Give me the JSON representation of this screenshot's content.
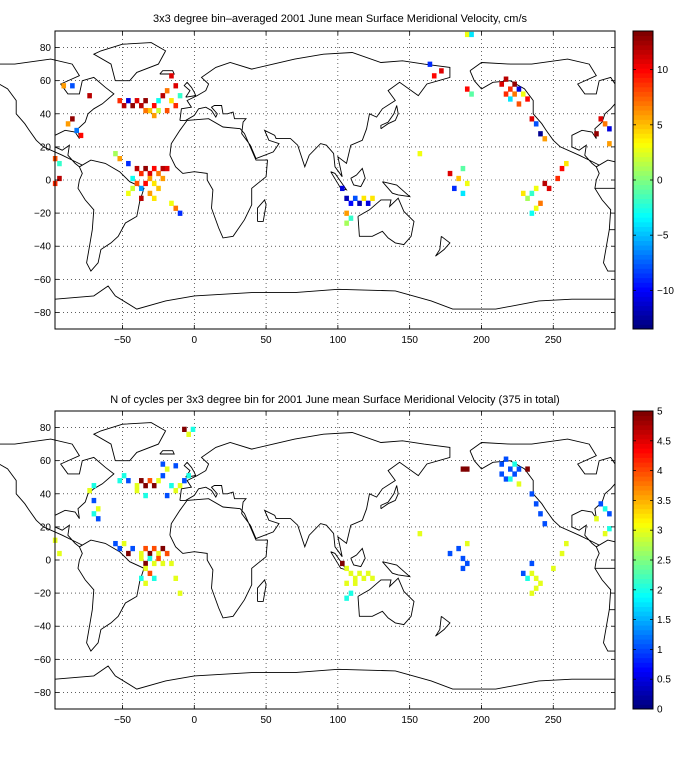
{
  "chart_data": [
    {
      "type": "heatmap",
      "title": "3x3 degree bin–averaged 2001 June mean Surface Meridional Velocity, cm/s",
      "x_ticks": [
        -50,
        0,
        50,
        100,
        150,
        200,
        250
      ],
      "y_ticks": [
        80,
        60,
        40,
        20,
        0,
        -20,
        -40,
        -60,
        -80
      ],
      "xlim": [
        -97,
        293
      ],
      "ylim": [
        -90,
        90
      ],
      "grid": true,
      "colorbar": {
        "range": [
          -13.5,
          13.5
        ],
        "ticks": [
          10,
          5,
          0,
          -5,
          -10
        ],
        "colormap": "jet"
      },
      "cells": [
        [
          190,
          88,
          3
        ],
        [
          193,
          88,
          -4
        ],
        [
          167,
          63,
          10
        ],
        [
          164,
          70,
          -9
        ],
        [
          172,
          66,
          11
        ],
        [
          -91,
          57,
          6
        ],
        [
          -85,
          57,
          -8
        ],
        [
          -73,
          51,
          12
        ],
        [
          -52,
          48,
          9
        ],
        [
          -49,
          45,
          12
        ],
        [
          -46,
          48,
          -11
        ],
        [
          -43,
          45,
          13
        ],
        [
          -40,
          48,
          11
        ],
        [
          -37,
          45,
          12
        ],
        [
          -34,
          48,
          13
        ],
        [
          -31,
          42,
          5
        ],
        [
          -34,
          42,
          7
        ],
        [
          -28,
          45,
          10
        ],
        [
          -25,
          48,
          -3
        ],
        [
          -22,
          51,
          12
        ],
        [
          -19,
          54,
          7
        ],
        [
          -16,
          48,
          4
        ],
        [
          -13,
          45,
          9
        ],
        [
          -25,
          42,
          2
        ],
        [
          -28,
          39,
          6
        ],
        [
          -19,
          42,
          8
        ],
        [
          -10,
          51,
          -2
        ],
        [
          -13,
          57,
          11
        ],
        [
          -16,
          63,
          11
        ],
        [
          -85,
          37,
          13
        ],
        [
          -88,
          34,
          6
        ],
        [
          -82,
          30,
          -7
        ],
        [
          -79,
          27,
          10
        ],
        [
          -97,
          13,
          8
        ],
        [
          -94,
          10,
          -2
        ],
        [
          -55,
          16,
          1
        ],
        [
          -52,
          13,
          6
        ],
        [
          -46,
          10,
          -9
        ],
        [
          -40,
          7,
          12
        ],
        [
          -37,
          4,
          9
        ],
        [
          -34,
          7,
          13
        ],
        [
          -31,
          4,
          11
        ],
        [
          -28,
          7,
          10
        ],
        [
          -25,
          4,
          7
        ],
        [
          -22,
          7,
          12
        ],
        [
          -43,
          1,
          -3
        ],
        [
          -40,
          -2,
          8
        ],
        [
          -37,
          -5,
          -6
        ],
        [
          -34,
          -2,
          10
        ],
        [
          -31,
          1,
          6
        ],
        [
          -28,
          -2,
          4
        ],
        [
          -25,
          -5,
          5
        ],
        [
          -46,
          -8,
          3
        ],
        [
          -43,
          -5,
          2
        ],
        [
          -37,
          -11,
          12
        ],
        [
          -31,
          -8,
          6
        ],
        [
          -28,
          -11,
          4
        ],
        [
          -16,
          -14,
          3
        ],
        [
          -13,
          -17,
          7
        ],
        [
          -10,
          -20,
          -9
        ],
        [
          -19,
          7,
          11
        ],
        [
          -22,
          1,
          6
        ],
        [
          -94,
          1,
          12
        ],
        [
          -97,
          -2,
          9
        ],
        [
          103,
          -5,
          -11
        ],
        [
          106,
          -11,
          -12
        ],
        [
          109,
          -14,
          -10
        ],
        [
          112,
          -11,
          -8
        ],
        [
          115,
          -14,
          -12
        ],
        [
          118,
          -11,
          4
        ],
        [
          121,
          -14,
          -11
        ],
        [
          124,
          -11,
          4
        ],
        [
          106,
          -20,
          6
        ],
        [
          109,
          -23,
          -2
        ],
        [
          106,
          -26,
          1
        ],
        [
          157,
          16,
          3
        ],
        [
          178,
          4,
          11
        ],
        [
          184,
          1,
          5
        ],
        [
          187,
          7,
          -1
        ],
        [
          181,
          -5,
          -9
        ],
        [
          190,
          -2,
          3
        ],
        [
          187,
          -8,
          -4
        ],
        [
          190,
          55,
          10
        ],
        [
          193,
          52,
          -1
        ],
        [
          214,
          58,
          11
        ],
        [
          217,
          61,
          12
        ],
        [
          220,
          55,
          9
        ],
        [
          223,
          58,
          13
        ],
        [
          226,
          55,
          -11
        ],
        [
          229,
          52,
          3
        ],
        [
          223,
          52,
          7
        ],
        [
          232,
          49,
          10
        ],
        [
          217,
          52,
          9
        ],
        [
          220,
          49,
          -4
        ],
        [
          226,
          46,
          8
        ],
        [
          235,
          37,
          11
        ],
        [
          238,
          34,
          -8
        ],
        [
          241,
          28,
          -13
        ],
        [
          244,
          25,
          6
        ],
        [
          229,
          -8,
          4
        ],
        [
          232,
          -11,
          1
        ],
        [
          235,
          -8,
          -2
        ],
        [
          238,
          -5,
          3
        ],
        [
          241,
          -14,
          7
        ],
        [
          238,
          -17,
          3
        ],
        [
          235,
          -20,
          -3
        ],
        [
          244,
          -2,
          12
        ],
        [
          247,
          -5,
          11
        ],
        [
          253,
          1,
          9
        ],
        [
          256,
          7,
          10
        ],
        [
          259,
          10,
          4
        ],
        [
          283,
          37,
          11
        ],
        [
          286,
          34,
          7
        ],
        [
          289,
          31,
          -11
        ],
        [
          280,
          28,
          13
        ],
        [
          289,
          22,
          6
        ]
      ]
    },
    {
      "type": "heatmap",
      "title": "N of cycles per 3x3 degree bin for 2001 June mean Surface Meridional Velocity (375 in total)",
      "x_ticks": [
        -50,
        0,
        50,
        100,
        150,
        200,
        250
      ],
      "y_ticks": [
        80,
        60,
        40,
        20,
        0,
        -20,
        -40,
        -60,
        -80
      ],
      "xlim": [
        -97,
        293
      ],
      "ylim": [
        -90,
        90
      ],
      "grid": true,
      "colorbar": {
        "range": [
          0,
          5
        ],
        "ticks": [
          5,
          4.5,
          4,
          3.5,
          3,
          2.5,
          2,
          1.5,
          1,
          0.5,
          0
        ],
        "colormap": "jet"
      },
      "cells": [
        [
          -7,
          79,
          5
        ],
        [
          -4,
          76,
          3
        ],
        [
          -1,
          79,
          2
        ],
        [
          -52,
          48,
          2
        ],
        [
          -49,
          51,
          2
        ],
        [
          -46,
          48,
          1
        ],
        [
          -40,
          45,
          3
        ],
        [
          -37,
          48,
          5
        ],
        [
          -34,
          45,
          5
        ],
        [
          -31,
          48,
          4
        ],
        [
          -28,
          45,
          5
        ],
        [
          -25,
          48,
          3
        ],
        [
          -40,
          42,
          3
        ],
        [
          -34,
          39,
          2
        ],
        [
          -22,
          51,
          1
        ],
        [
          -16,
          45,
          2
        ],
        [
          -13,
          42,
          3
        ],
        [
          -19,
          39,
          1
        ],
        [
          -19,
          55,
          3
        ],
        [
          -22,
          58,
          1
        ],
        [
          -10,
          45,
          3
        ],
        [
          -7,
          48,
          1
        ],
        [
          -4,
          51,
          2
        ],
        [
          -13,
          57,
          1
        ],
        [
          -70,
          45,
          2
        ],
        [
          -73,
          42,
          3
        ],
        [
          -70,
          36,
          1
        ],
        [
          -67,
          31,
          3
        ],
        [
          -70,
          28,
          2
        ],
        [
          -67,
          25,
          1
        ],
        [
          -97,
          12,
          3
        ],
        [
          -94,
          4,
          3
        ],
        [
          -55,
          10,
          1
        ],
        [
          -52,
          7,
          1
        ],
        [
          -49,
          10,
          3
        ],
        [
          -46,
          4,
          5
        ],
        [
          -43,
          7,
          1
        ],
        [
          -37,
          4,
          3
        ],
        [
          -34,
          7,
          4
        ],
        [
          -31,
          4,
          5
        ],
        [
          -28,
          7,
          4
        ],
        [
          -25,
          4,
          3
        ],
        [
          -22,
          7,
          5
        ],
        [
          -19,
          4,
          4
        ],
        [
          -37,
          1,
          3
        ],
        [
          -34,
          -2,
          5
        ],
        [
          -31,
          1,
          2
        ],
        [
          -28,
          -2,
          3
        ],
        [
          -25,
          1,
          4
        ],
        [
          -22,
          -2,
          3
        ],
        [
          -34,
          -5,
          3
        ],
        [
          -31,
          -8,
          4
        ],
        [
          -28,
          -11,
          2
        ],
        [
          -16,
          -2,
          3
        ],
        [
          -13,
          -11,
          3
        ],
        [
          -10,
          -20,
          3
        ],
        [
          -37,
          -11,
          2
        ],
        [
          -34,
          -14,
          3
        ],
        [
          187,
          55,
          5
        ],
        [
          190,
          55,
          5
        ],
        [
          214,
          58,
          1
        ],
        [
          217,
          61,
          1
        ],
        [
          220,
          55,
          1
        ],
        [
          223,
          58,
          2
        ],
        [
          226,
          55,
          1
        ],
        [
          223,
          52,
          1
        ],
        [
          214,
          52,
          1
        ],
        [
          217,
          49,
          1
        ],
        [
          220,
          49,
          2
        ],
        [
          226,
          46,
          3
        ],
        [
          232,
          55,
          5
        ],
        [
          235,
          40,
          1
        ],
        [
          238,
          34,
          1
        ],
        [
          241,
          28,
          1
        ],
        [
          244,
          22,
          1
        ],
        [
          103,
          -2,
          5
        ],
        [
          106,
          -5,
          3
        ],
        [
          109,
          -8,
          3
        ],
        [
          112,
          -11,
          3
        ],
        [
          115,
          -8,
          3
        ],
        [
          118,
          -11,
          3
        ],
        [
          121,
          -8,
          3
        ],
        [
          124,
          -11,
          3
        ],
        [
          106,
          -14,
          3
        ],
        [
          109,
          -20,
          2
        ],
        [
          106,
          -23,
          2
        ],
        [
          112,
          -14,
          3
        ],
        [
          157,
          16,
          3
        ],
        [
          178,
          4,
          1
        ],
        [
          184,
          7,
          1
        ],
        [
          187,
          1,
          1
        ],
        [
          190,
          -2,
          1
        ],
        [
          187,
          -5,
          1
        ],
        [
          190,
          10,
          3
        ],
        [
          229,
          -8,
          1
        ],
        [
          232,
          -11,
          2
        ],
        [
          235,
          -8,
          3
        ],
        [
          238,
          -11,
          3
        ],
        [
          241,
          -14,
          3
        ],
        [
          238,
          -17,
          3
        ],
        [
          235,
          -20,
          3
        ],
        [
          235,
          -2,
          1
        ],
        [
          250,
          -5,
          3
        ],
        [
          256,
          4,
          3
        ],
        [
          259,
          10,
          3
        ],
        [
          283,
          34,
          1
        ],
        [
          286,
          31,
          2
        ],
        [
          289,
          28,
          1
        ],
        [
          280,
          25,
          3
        ],
        [
          289,
          19,
          2
        ],
        [
          286,
          16,
          3
        ]
      ]
    }
  ]
}
